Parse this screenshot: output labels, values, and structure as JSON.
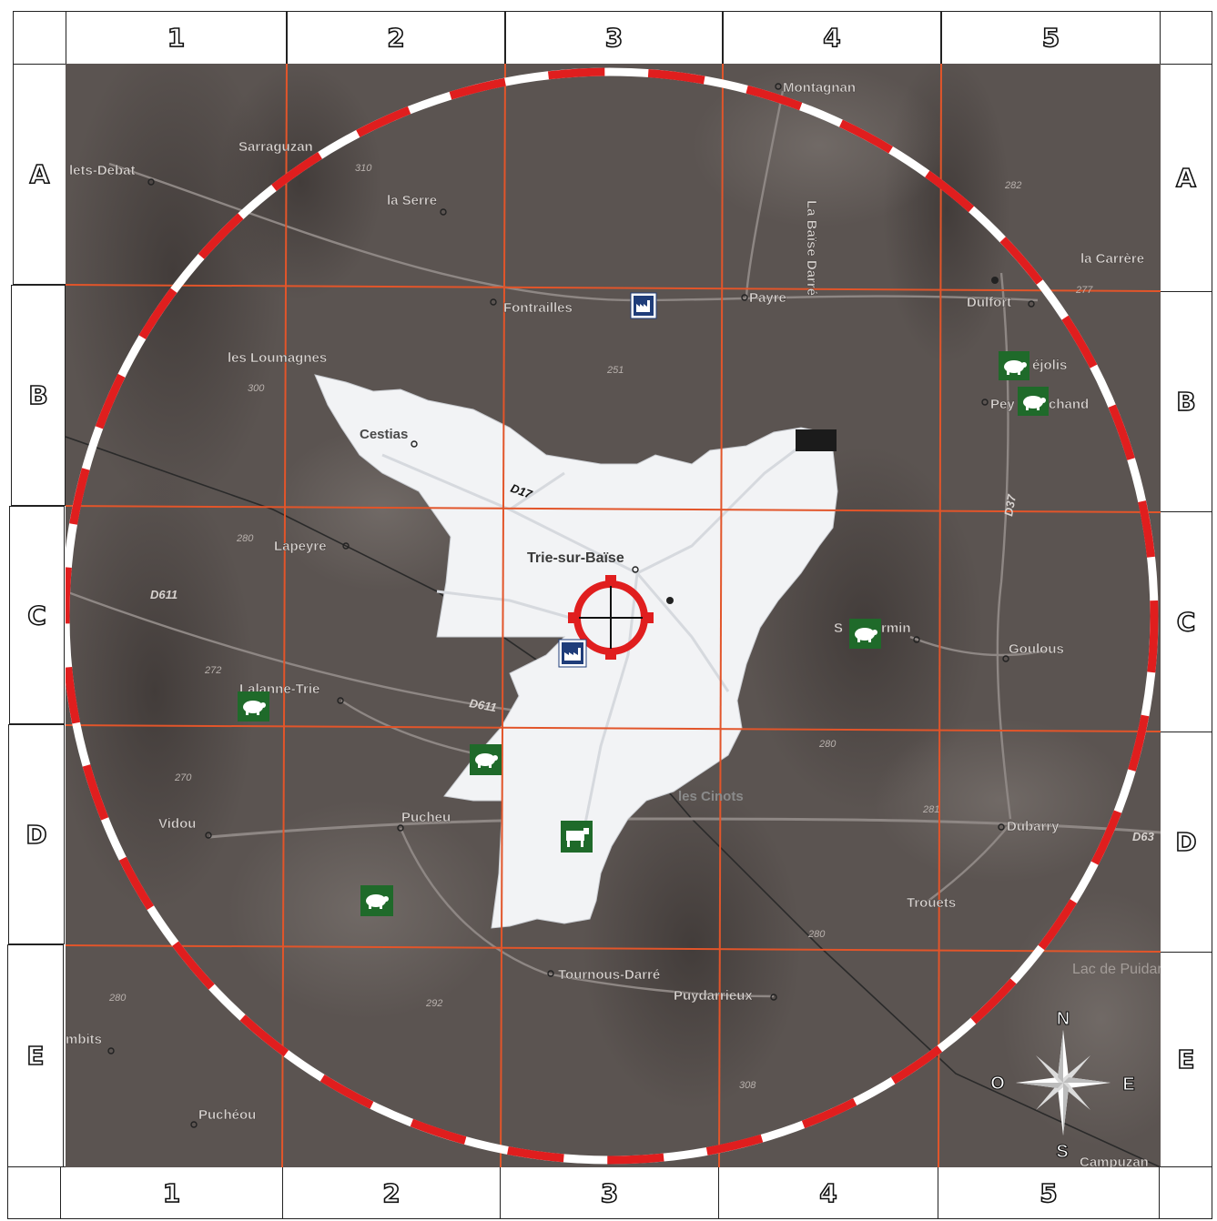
{
  "grid": {
    "columns": [
      "1",
      "2",
      "3",
      "4",
      "5"
    ],
    "rows": [
      "A",
      "B",
      "C",
      "D",
      "E"
    ]
  },
  "colors": {
    "terrain": "#5a5350",
    "grid_line": "#e2552a",
    "ring_red": "#e01e1e",
    "ring_white": "#ffffff",
    "commune_fill": "#f2f3f5",
    "icon_green": "#1f6a2a",
    "icon_blue": "#1f3d7a"
  },
  "place_labels": [
    {
      "name": "lets-Debat"
    },
    {
      "name": "Sarraguzan"
    },
    {
      "name": "la Serre"
    },
    {
      "name": "Montagnan"
    },
    {
      "name": "la Carrère"
    },
    {
      "name": "Fontrailles"
    },
    {
      "name": "Payre"
    },
    {
      "name": "La Baïse Darré"
    },
    {
      "name": "Dulfort"
    },
    {
      "name": "les Loumagnes"
    },
    {
      "name": "Cestias"
    },
    {
      "name": "Trie-sur-Baïse"
    },
    {
      "name": "Lapeyre"
    },
    {
      "name": "Lalanne-Trie"
    },
    {
      "name": "Vidou"
    },
    {
      "name": "Pucheu"
    },
    {
      "name": "Tournous-Darré"
    },
    {
      "name": "Puydarrieux"
    },
    {
      "name": "les Cinots"
    },
    {
      "name": "Goulous"
    },
    {
      "name": "Dubarry"
    },
    {
      "name": "Trouets"
    },
    {
      "name": "Lac de Puidarrieu"
    },
    {
      "name": "mbits"
    },
    {
      "name": "Puchéou"
    },
    {
      "name": "Campuzan"
    },
    {
      "name": "éjolis"
    },
    {
      "name": "Pey"
    },
    {
      "name": "chand"
    },
    {
      "name": "S"
    },
    {
      "name": "rmin"
    }
  ],
  "road_labels": [
    {
      "name": "D17"
    },
    {
      "name": "D611"
    },
    {
      "name": "D611"
    },
    {
      "name": "D37"
    },
    {
      "name": "D63"
    }
  ],
  "elevations": [
    {
      "value": "310"
    },
    {
      "value": "282"
    },
    {
      "value": "277"
    },
    {
      "value": "251"
    },
    {
      "value": "300"
    },
    {
      "value": "280"
    },
    {
      "value": "272"
    },
    {
      "value": "270"
    },
    {
      "value": "280"
    },
    {
      "value": "281"
    },
    {
      "value": "280"
    },
    {
      "value": "280"
    },
    {
      "value": "292"
    },
    {
      "value": "308"
    }
  ],
  "compass": {
    "north": "N",
    "south": "S",
    "east": "E",
    "west": "O"
  },
  "icons": [
    {
      "name": "factory-icon"
    },
    {
      "name": "factory-icon"
    },
    {
      "name": "pig-farm-icon"
    },
    {
      "name": "pig-farm-icon"
    },
    {
      "name": "pig-farm-icon"
    },
    {
      "name": "pig-farm-icon"
    },
    {
      "name": "pig-farm-icon"
    },
    {
      "name": "pig-farm-icon"
    },
    {
      "name": "cattle-farm-icon"
    }
  ]
}
